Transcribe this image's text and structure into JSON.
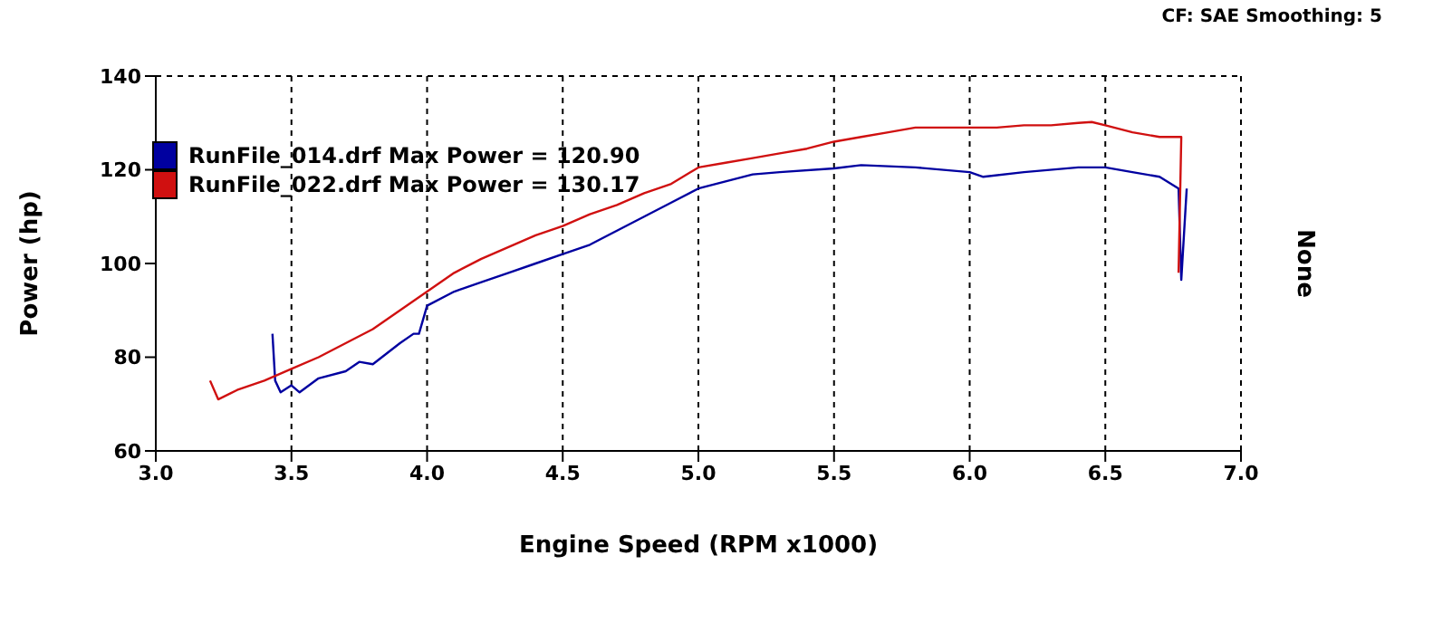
{
  "chart_data": {
    "type": "line",
    "xlabel": "Engine Speed (RPM x1000)",
    "ylabel": "Power (hp)",
    "y2label": "None",
    "annotations": [
      "CF: SAE  Smoothing: 5"
    ],
    "xlim": [
      3.0,
      7.0
    ],
    "xticks": [
      {
        "value": 3,
        "label": "3.0"
      },
      3.5,
      {
        "value": 4,
        "label": "4.0"
      },
      4.5,
      {
        "value": 5,
        "label": "5.0"
      },
      5.5,
      {
        "value": 6,
        "label": "6.0"
      },
      6.5,
      {
        "value": 7,
        "label": "7.0"
      }
    ],
    "ylim": [
      60,
      140
    ],
    "yticks": [
      60,
      80,
      100,
      120,
      140
    ],
    "grid": true,
    "legend": "top left",
    "marker": "none",
    "line_style": "solid",
    "series": [
      {
        "name": "RunFile_014.drf Max Power = 120.90",
        "color": "#0000a0",
        "x": [
          3.43,
          3.44,
          3.46,
          3.5,
          3.53,
          3.6,
          3.7,
          3.75,
          3.8,
          3.9,
          3.95,
          3.97,
          4.0,
          4.1,
          4.2,
          4.3,
          4.4,
          4.5,
          4.6,
          4.7,
          4.8,
          4.9,
          5.0,
          5.1,
          5.2,
          5.3,
          5.5,
          5.6,
          5.8,
          6.0,
          6.05,
          6.2,
          6.4,
          6.5,
          6.6,
          6.7,
          6.77,
          6.78,
          6.8
        ],
        "values": [
          85,
          75,
          72.5,
          74,
          72.5,
          75.5,
          77,
          79,
          78.5,
          83,
          85,
          85,
          91,
          94,
          96,
          98,
          100,
          102,
          104,
          107,
          110,
          113,
          116,
          117.5,
          119,
          119.5,
          120.3,
          121,
          120.5,
          119.5,
          118.5,
          119.5,
          120.5,
          120.5,
          119.5,
          118.5,
          116,
          96.5,
          116
        ]
      },
      {
        "name": "RunFile_022.drf Max Power = 130.17",
        "color": "#d01010",
        "x": [
          3.2,
          3.23,
          3.3,
          3.4,
          3.5,
          3.6,
          3.7,
          3.8,
          3.9,
          4.0,
          4.1,
          4.2,
          4.3,
          4.4,
          4.5,
          4.6,
          4.7,
          4.8,
          4.9,
          5.0,
          5.1,
          5.2,
          5.3,
          5.4,
          5.5,
          5.6,
          5.7,
          5.8,
          5.9,
          6.0,
          6.1,
          6.2,
          6.3,
          6.4,
          6.45,
          6.5,
          6.6,
          6.7,
          6.78,
          6.77
        ],
        "values": [
          75,
          71,
          73,
          75,
          77.5,
          80,
          83,
          86,
          90,
          94,
          98,
          101,
          103.5,
          106,
          108,
          110.5,
          112.5,
          115,
          117,
          120.5,
          121.5,
          122.5,
          123.5,
          124.5,
          126,
          127,
          128,
          129,
          129,
          129,
          129,
          129.5,
          129.5,
          130,
          130.2,
          129.5,
          128,
          127,
          127,
          98
        ]
      }
    ]
  }
}
